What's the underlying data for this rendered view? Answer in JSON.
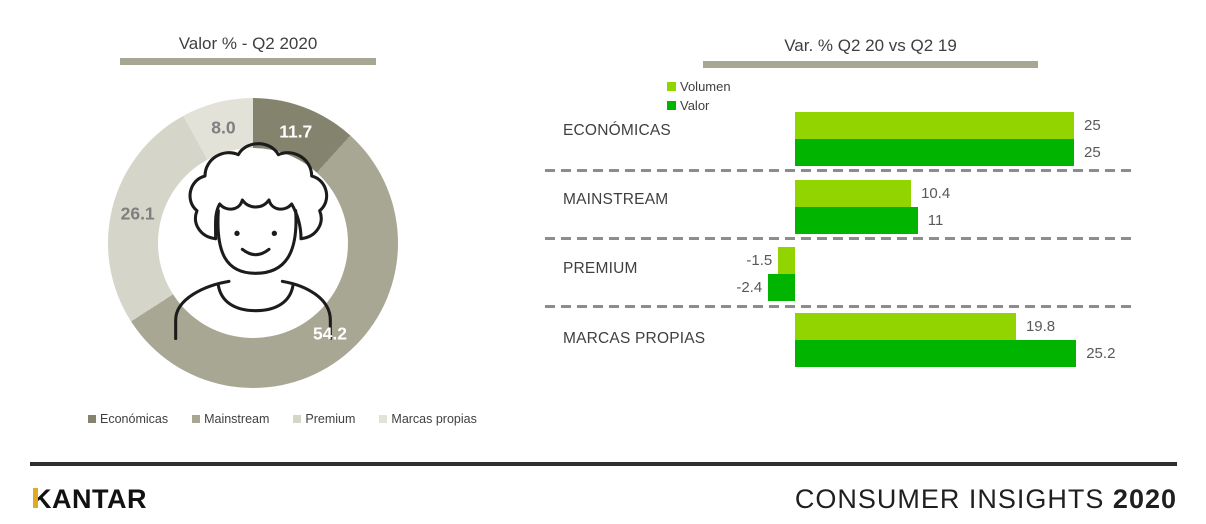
{
  "chart_data": [
    {
      "type": "pie",
      "donut": true,
      "title": "Valor % - Q2 2020",
      "labels": [
        "Económicas",
        "Mainstream",
        "Premium",
        "Marcas propias"
      ],
      "values": [
        11.7,
        54.2,
        26.1,
        8.0
      ],
      "value_labels": [
        "11.7",
        "54.2",
        "26.1",
        "8.0"
      ],
      "colors": [
        "#84846E",
        "#A8A793",
        "#D6D5CA",
        "#E3E2D9"
      ],
      "value_label_colors": [
        "#FFFFFF",
        "#FFFFFF",
        "#7F7F7F",
        "#7F7F7F"
      ],
      "legend_position": "bottom",
      "center_icon": "person"
    },
    {
      "type": "bar",
      "orientation": "horizontal",
      "title": "Var. % Q2 20 vs Q2 19",
      "categories": [
        "ECONÓMICAS",
        "MAINSTREAM",
        "PREMIUM",
        "MARCAS PROPIAS"
      ],
      "series": [
        {
          "name": "Volumen",
          "color": "#92D400",
          "values": [
            25,
            10.4,
            -1.5,
            19.8
          ],
          "value_labels": [
            "25",
            "10.4",
            "-1.5",
            "19.8"
          ]
        },
        {
          "name": "Valor",
          "color": "#00B400",
          "values": [
            25,
            11,
            -2.4,
            25.2
          ],
          "value_labels": [
            "25",
            "11",
            "-2.4",
            "25.2"
          ]
        }
      ],
      "axis_baseline": 0,
      "legend_position": "top",
      "separators": "dashed"
    }
  ],
  "footer": {
    "brand": "KANTAR",
    "right_light": "CONSUMER INSIGHTS",
    "right_bold": "2020"
  }
}
